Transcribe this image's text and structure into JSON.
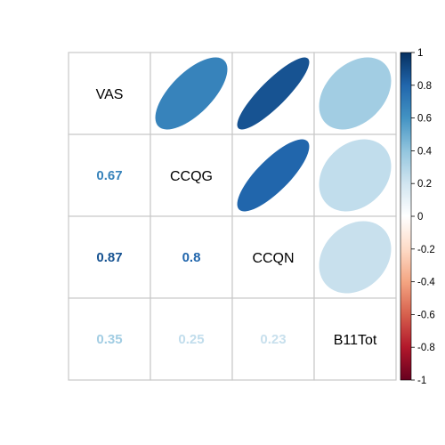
{
  "chart_data": {
    "type": "heatmap",
    "variables": [
      "VAS",
      "CCQG",
      "CCQN",
      "B11Tot"
    ],
    "correlation_matrix": [
      [
        1.0,
        0.67,
        0.87,
        0.35
      ],
      [
        0.67,
        1.0,
        0.8,
        0.25
      ],
      [
        0.87,
        0.8,
        1.0,
        0.23
      ],
      [
        0.35,
        0.25,
        0.23,
        1.0
      ]
    ],
    "lower_triangle_style": "number",
    "upper_triangle_style": "ellipse",
    "diagonal_style": "variable-name",
    "colorbar": {
      "range": [
        -1,
        1
      ],
      "ticks": [
        "1",
        "0.8",
        "0.6",
        "0.4",
        "0.2",
        "0",
        "-0.2",
        "-0.4",
        "-0.6",
        "-0.8",
        "-1"
      ],
      "colors": [
        "#67001F",
        "#B2182B",
        "#D6604D",
        "#F4A582",
        "#FDDBC7",
        "#FFFFFF",
        "#D1E5F0",
        "#92C5DE",
        "#4393C3",
        "#2166AC",
        "#053061"
      ]
    },
    "grid": true,
    "legend_position": "right"
  }
}
